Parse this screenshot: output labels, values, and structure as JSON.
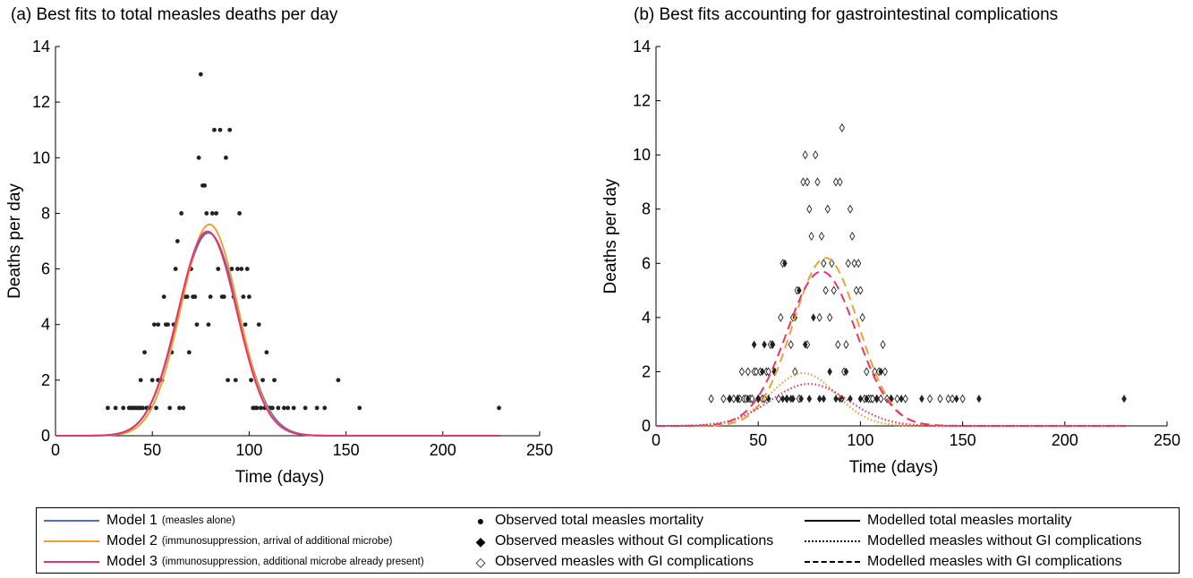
{
  "chart_data": [
    {
      "type": "scatter",
      "panel": "a",
      "title": "(a) Best fits to total measles deaths per day",
      "xlabel": "Time (days)",
      "ylabel": "Deaths per day",
      "xlim": [
        0,
        250
      ],
      "ylim": [
        0,
        14
      ],
      "xticks": [
        0,
        50,
        100,
        150,
        200,
        250
      ],
      "yticks": [
        0,
        2,
        4,
        6,
        8,
        10,
        12,
        14
      ],
      "observed_total": [
        [
          27,
          1
        ],
        [
          31,
          1
        ],
        [
          35,
          1
        ],
        [
          38,
          1
        ],
        [
          39,
          1
        ],
        [
          40,
          1
        ],
        [
          41,
          1
        ],
        [
          42,
          1
        ],
        [
          43,
          1
        ],
        [
          44,
          1
        ],
        [
          44,
          2
        ],
        [
          45,
          1
        ],
        [
          46,
          3
        ],
        [
          47,
          1
        ],
        [
          48,
          1
        ],
        [
          49,
          1
        ],
        [
          50,
          2
        ],
        [
          51,
          4
        ],
        [
          52,
          1
        ],
        [
          53,
          2
        ],
        [
          53,
          4
        ],
        [
          54,
          2
        ],
        [
          55,
          2
        ],
        [
          56,
          5
        ],
        [
          57,
          4
        ],
        [
          58,
          4
        ],
        [
          59,
          1
        ],
        [
          60,
          3
        ],
        [
          61,
          4
        ],
        [
          62,
          6
        ],
        [
          63,
          7
        ],
        [
          64,
          1
        ],
        [
          65,
          8
        ],
        [
          66,
          1
        ],
        [
          67,
          5
        ],
        [
          68,
          5
        ],
        [
          69,
          3
        ],
        [
          70,
          6
        ],
        [
          71,
          5
        ],
        [
          72,
          5
        ],
        [
          73,
          4
        ],
        [
          74,
          10
        ],
        [
          75,
          13
        ],
        [
          76,
          9
        ],
        [
          77,
          9
        ],
        [
          78,
          8
        ],
        [
          79,
          4
        ],
        [
          80,
          5
        ],
        [
          81,
          8
        ],
        [
          82,
          11
        ],
        [
          83,
          8
        ],
        [
          84,
          6
        ],
        [
          85,
          11
        ],
        [
          86,
          5
        ],
        [
          87,
          5
        ],
        [
          88,
          10
        ],
        [
          89,
          2
        ],
        [
          90,
          11
        ],
        [
          91,
          6
        ],
        [
          92,
          5
        ],
        [
          93,
          2
        ],
        [
          94,
          6
        ],
        [
          95,
          8
        ],
        [
          96,
          6
        ],
        [
          97,
          5
        ],
        [
          98,
          4
        ],
        [
          99,
          6
        ],
        [
          100,
          5
        ],
        [
          101,
          2
        ],
        [
          102,
          1
        ],
        [
          103,
          1
        ],
        [
          104,
          1
        ],
        [
          105,
          4
        ],
        [
          106,
          1
        ],
        [
          107,
          2
        ],
        [
          108,
          1
        ],
        [
          109,
          3
        ],
        [
          110,
          1
        ],
        [
          111,
          1
        ],
        [
          112,
          1
        ],
        [
          113,
          2
        ],
        [
          115,
          1
        ],
        [
          118,
          1
        ],
        [
          120,
          1
        ],
        [
          123,
          1
        ],
        [
          129,
          1
        ],
        [
          135,
          1
        ],
        [
          139,
          1
        ],
        [
          146,
          2
        ],
        [
          157,
          1
        ],
        [
          229,
          1
        ]
      ],
      "series": [
        {
          "name": "Model 1",
          "peak": 79,
          "height": 7.3,
          "width": 15.5,
          "color": "#4a72c8",
          "dash": "solid"
        },
        {
          "name": "Model 2",
          "peak": 79.5,
          "height": 7.6,
          "width": 14.8,
          "color": "#f0a030",
          "dash": "solid"
        },
        {
          "name": "Model 3",
          "peak": 78.5,
          "height": 7.35,
          "width": 15.2,
          "color": "#e8336e",
          "dash": "solid"
        }
      ]
    },
    {
      "type": "scatter",
      "panel": "b",
      "title": "(b) Best fits accounting for gastrointestinal complications",
      "xlabel": "Time (days)",
      "ylabel": "Deaths per day",
      "xlim": [
        0,
        250
      ],
      "ylim": [
        0,
        14
      ],
      "xticks": [
        0,
        50,
        100,
        150,
        200,
        250
      ],
      "yticks": [
        0,
        2,
        4,
        6,
        8,
        10,
        12,
        14
      ],
      "observed_without_gi": [
        [
          36,
          1
        ],
        [
          40,
          1
        ],
        [
          45,
          1
        ],
        [
          48,
          3
        ],
        [
          50,
          1
        ],
        [
          52,
          2
        ],
        [
          53,
          3
        ],
        [
          55,
          1
        ],
        [
          57,
          3
        ],
        [
          58,
          2
        ],
        [
          62,
          1
        ],
        [
          63,
          6
        ],
        [
          64,
          1
        ],
        [
          66,
          1
        ],
        [
          67,
          1
        ],
        [
          68,
          4
        ],
        [
          70,
          5
        ],
        [
          71,
          1
        ],
        [
          73,
          3
        ],
        [
          75,
          1
        ],
        [
          77,
          4
        ],
        [
          80,
          1
        ],
        [
          82,
          1
        ],
        [
          85,
          2
        ],
        [
          88,
          1
        ],
        [
          90,
          1
        ],
        [
          91,
          1
        ],
        [
          93,
          2
        ],
        [
          95,
          1
        ],
        [
          100,
          1
        ],
        [
          103,
          1
        ],
        [
          108,
          1
        ],
        [
          110,
          2
        ],
        [
          115,
          1
        ],
        [
          120,
          1
        ],
        [
          130,
          1
        ],
        [
          147,
          1
        ],
        [
          158,
          1
        ],
        [
          229,
          1
        ]
      ],
      "observed_with_gi": [
        [
          27,
          1
        ],
        [
          33,
          1
        ],
        [
          36,
          1
        ],
        [
          38,
          1
        ],
        [
          40,
          1
        ],
        [
          41,
          1
        ],
        [
          42,
          2
        ],
        [
          43,
          1
        ],
        [
          44,
          1
        ],
        [
          45,
          2
        ],
        [
          46,
          1
        ],
        [
          47,
          1
        ],
        [
          48,
          2
        ],
        [
          49,
          2
        ],
        [
          50,
          1
        ],
        [
          51,
          2
        ],
        [
          52,
          1
        ],
        [
          53,
          1
        ],
        [
          54,
          2
        ],
        [
          55,
          2
        ],
        [
          56,
          3
        ],
        [
          57,
          3
        ],
        [
          58,
          2
        ],
        [
          60,
          1
        ],
        [
          61,
          4
        ],
        [
          62,
          6
        ],
        [
          64,
          1
        ],
        [
          66,
          3
        ],
        [
          67,
          4
        ],
        [
          68,
          2
        ],
        [
          69,
          5
        ],
        [
          70,
          1
        ],
        [
          72,
          9
        ],
        [
          73,
          10
        ],
        [
          74,
          3
        ],
        [
          74,
          9
        ],
        [
          75,
          8
        ],
        [
          76,
          7
        ],
        [
          78,
          10
        ],
        [
          79,
          9
        ],
        [
          80,
          4
        ],
        [
          81,
          7
        ],
        [
          82,
          6
        ],
        [
          83,
          5
        ],
        [
          84,
          8
        ],
        [
          85,
          4
        ],
        [
          86,
          6
        ],
        [
          87,
          5
        ],
        [
          88,
          9
        ],
        [
          89,
          3
        ],
        [
          90,
          9
        ],
        [
          91,
          11
        ],
        [
          92,
          2
        ],
        [
          93,
          3
        ],
        [
          94,
          6
        ],
        [
          95,
          8
        ],
        [
          96,
          7
        ],
        [
          97,
          6
        ],
        [
          98,
          5
        ],
        [
          99,
          6
        ],
        [
          100,
          5
        ],
        [
          101,
          4
        ],
        [
          102,
          1
        ],
        [
          103,
          2
        ],
        [
          104,
          1
        ],
        [
          105,
          1
        ],
        [
          106,
          1
        ],
        [
          107,
          2
        ],
        [
          108,
          1
        ],
        [
          109,
          2
        ],
        [
          110,
          1
        ],
        [
          111,
          3
        ],
        [
          112,
          2
        ],
        [
          113,
          1
        ],
        [
          115,
          1
        ],
        [
          118,
          1
        ],
        [
          122,
          1
        ],
        [
          134,
          1
        ],
        [
          139,
          1
        ],
        [
          143,
          1
        ],
        [
          145,
          1
        ],
        [
          150,
          1
        ]
      ],
      "series": [
        {
          "name": "Model 2 with GI",
          "peak": 83,
          "height": 6.2,
          "width": 16,
          "color": "#f0a030",
          "dash": "dashed"
        },
        {
          "name": "Model 3 with GI",
          "peak": 81,
          "height": 5.7,
          "width": 17,
          "color": "#e8336e",
          "dash": "dashed"
        },
        {
          "name": "Model 2 without GI",
          "peak": 72,
          "height": 1.95,
          "width": 16,
          "color": "#f0a030",
          "dash": "dotted"
        },
        {
          "name": "Model 3 without GI",
          "peak": 75,
          "height": 1.55,
          "width": 19,
          "color": "#e8336e",
          "dash": "dotted"
        }
      ]
    }
  ],
  "legend": {
    "models": [
      {
        "label": "Model 1",
        "sub": "(measles alone)",
        "color": "#4a72c8"
      },
      {
        "label": "Model 2",
        "sub": "(immunosuppression, arrival of additional microbe)",
        "color": "#f0a030"
      },
      {
        "label": "Model 3",
        "sub": "(immunosuppression, additional microbe already present)",
        "color": "#e8336e"
      }
    ],
    "observed": [
      {
        "symbol": "●",
        "label": "Observed total measles mortality"
      },
      {
        "symbol": "◆",
        "label": "Observed measles without GI complications"
      },
      {
        "symbol": "◇",
        "label": "Observed measles with GI complications"
      }
    ],
    "modelled": [
      {
        "style": "solid",
        "label": "Modelled total measles mortality"
      },
      {
        "style": "dotted",
        "label": "Modelled measles without GI complications"
      },
      {
        "style": "dashed",
        "label": "Modelled measles with GI complications"
      }
    ]
  }
}
